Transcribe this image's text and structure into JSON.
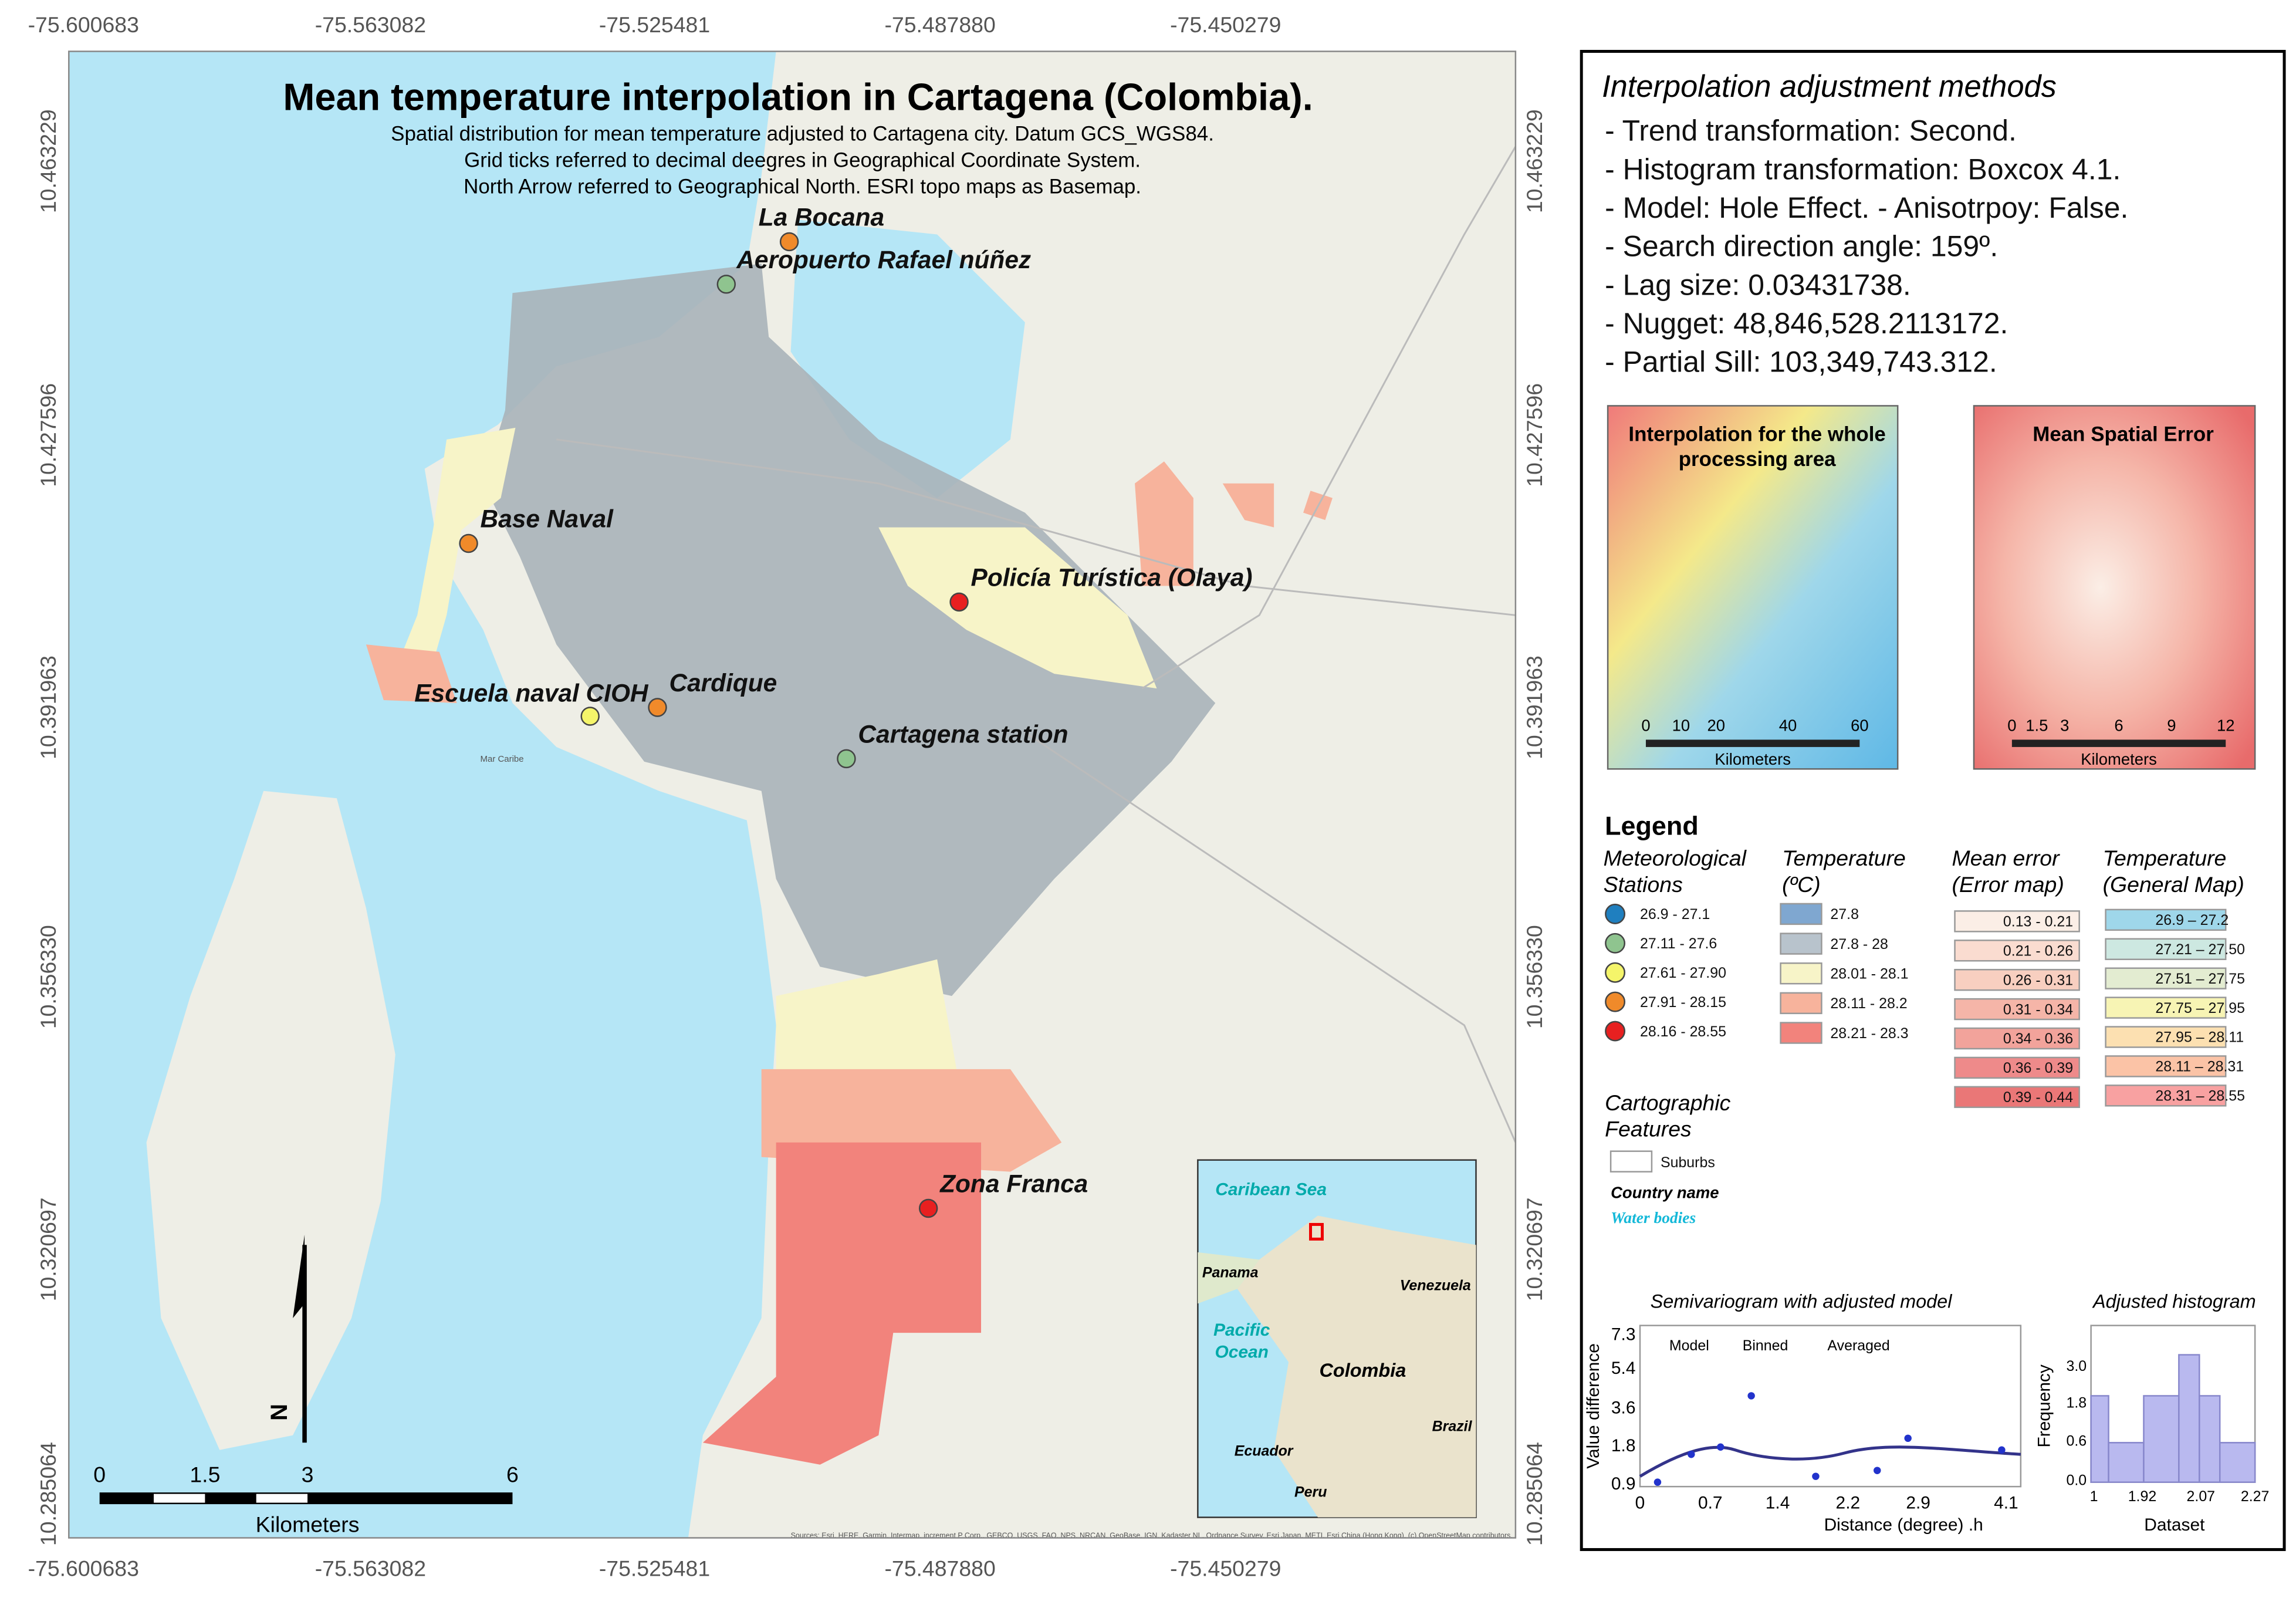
{
  "map": {
    "title": "Mean temperature interpolation in Cartagena (Colombia).",
    "subtitle": [
      "Spatial distribution for mean temperature adjusted to Cartagena city. Datum GCS_WGS84.",
      "Grid ticks referred to decimal deegres in Geographical Coordinate System.",
      "North Arrow referred to Geographical North. ESRI topo maps as Basemap."
    ],
    "longitude_labels": [
      "-75.600683",
      "-75.563082",
      "-75.525481",
      "-75.487880",
      "-75.450279"
    ],
    "latitude_labels": [
      "10.463229",
      "10.427596",
      "10.391963",
      "10.356330",
      "10.320697",
      "10.285064"
    ],
    "stations": [
      "La Bocana",
      "Aeropuerto Rafael núñez",
      "Base Naval",
      "Policía Turística (Olaya)",
      "Escuela naval CIOH",
      "Cardique",
      "Cartagena station",
      "Zona Franca"
    ],
    "place_labels": [
      "Mar Caribe"
    ],
    "scale_bar": {
      "labels": [
        "0",
        "1.5",
        "3",
        "6"
      ],
      "unit": "Kilometers"
    },
    "north_arrow": "N",
    "inset_labels": [
      "Caribean Sea",
      "Panama",
      "Pacific",
      "Ocean",
      "Colombia",
      "Venezuela",
      "Brazil",
      "Ecuador",
      "Peru"
    ],
    "sources": "Sources: Esri, HERE, Garmin, Intermap, increment P Corp., GEBCO, USGS, FAO, NPS, NRCAN, GeoBase, IGN, Kadaster NL, Ordnance Survey, Esri Japan, METI, Esri China (Hong Kong), (c) OpenStreetMap contributors, and the GIS User Community"
  },
  "methods": {
    "title": "Interpolation adjustment methods",
    "items": [
      "- Trend transformation: Second.",
      "- Histogram transformation: Boxcox 4.1.",
      "- Model: Hole Effect. - Anisotrpoy: False.",
      "- Search direction angle: 159º.",
      "- Lag size: 0.03431738.",
      "- Nugget: 48,846,528.2113172.",
      "- Partial Sill: 103,349,743.312."
    ]
  },
  "thumbnails": [
    {
      "title": [
        "Interpolation for the whole",
        "processing area"
      ],
      "scale": [
        "0",
        "10",
        "20",
        "40",
        "60"
      ],
      "unit": "Kilometers"
    },
    {
      "title": [
        "Mean Spatial Error"
      ],
      "scale": [
        "0",
        "1.5",
        "3",
        "6",
        "9",
        "12"
      ],
      "unit": "Kilometers"
    }
  ],
  "legend": {
    "title": "Legend",
    "groups": [
      {
        "title": [
          "Meteorological",
          "Stations"
        ],
        "items": [
          {
            "label": "26.9 - 27.1",
            "color": "#1f7fbf"
          },
          {
            "label": "27.11 - 27.6",
            "color": "#8fc48f"
          },
          {
            "label": "27.61 - 27.90",
            "color": "#f5f56a"
          },
          {
            "label": "27.91 - 28.15",
            "color": "#f08a2a"
          },
          {
            "label": "28.16 - 28.55",
            "color": "#e82020"
          }
        ]
      },
      {
        "title": [
          "Temperature",
          "(ºC)"
        ],
        "items": [
          {
            "label": "27.8",
            "color": "#7fa7d0"
          },
          {
            "label": "27.8 - 28",
            "color": "#b8c3cc"
          },
          {
            "label": "28.01 - 28.1",
            "color": "#f7f4c8"
          },
          {
            "label": "28.11 - 28.2",
            "color": "#f7b39c"
          },
          {
            "label": "28.21 - 28.3",
            "color": "#f2837c"
          }
        ]
      },
      {
        "title": [
          "Mean error",
          "(Error map)"
        ],
        "items": [
          {
            "label": "0.13 - 0.21",
            "color": "#fbeee6"
          },
          {
            "label": "0.21 - 0.26",
            "color": "#fadcd0"
          },
          {
            "label": "0.26 - 0.31",
            "color": "#f8cfc0"
          },
          {
            "label": "0.31 - 0.34",
            "color": "#f5b5a8"
          },
          {
            "label": "0.34 - 0.36",
            "color": "#f2a39b"
          },
          {
            "label": "0.36 - 0.39",
            "color": "#ee8a8a"
          },
          {
            "label": "0.39 - 0.44",
            "color": "#ea7777"
          }
        ]
      },
      {
        "title": [
          "Temperature",
          "(General Map)"
        ],
        "items": [
          {
            "label": "26.9 – 27.2",
            "color": "#9fd7ea"
          },
          {
            "label": "27.21 – 27.50",
            "color": "#cde8e1"
          },
          {
            "label": "27.51 – 27.75",
            "color": "#e3ecd1"
          },
          {
            "label": "27.75 – 27.95",
            "color": "#f7f4b4"
          },
          {
            "label": "27.95 – 28.11",
            "color": "#fce0b1"
          },
          {
            "label": "28.11 – 28.31",
            "color": "#fbc3a6"
          },
          {
            "label": "28.31 – 28.55",
            "color": "#f8a1a1"
          }
        ]
      }
    ],
    "cartographic": {
      "title": [
        "Cartographic",
        "Features"
      ],
      "items": [
        "Suburbs",
        "Country name",
        "Water bodies"
      ]
    }
  },
  "semivariogram": {
    "title": "Semivariogram with adjusted model",
    "y_label": "Value difference",
    "x_label": "Distance (degree) .h",
    "y_tick_labels": [
      "7.3",
      "5.4",
      "3.6",
      "1.8",
      "0.9"
    ],
    "x_tick_labels": [
      "0",
      "0.7",
      "1.4",
      "2.2",
      "2.9",
      "4.1"
    ],
    "legend": [
      "Model",
      "Binned",
      "Averaged"
    ]
  },
  "histogram": {
    "title": "Adjusted histogram",
    "y_label": "Frequency",
    "x_label": "Dataset",
    "y_tick_labels": [
      "3.0",
      "1.8",
      "0.6",
      "0.0"
    ],
    "x_tick_labels": [
      "1",
      "1.92",
      "2.07",
      "2.27"
    ]
  }
}
